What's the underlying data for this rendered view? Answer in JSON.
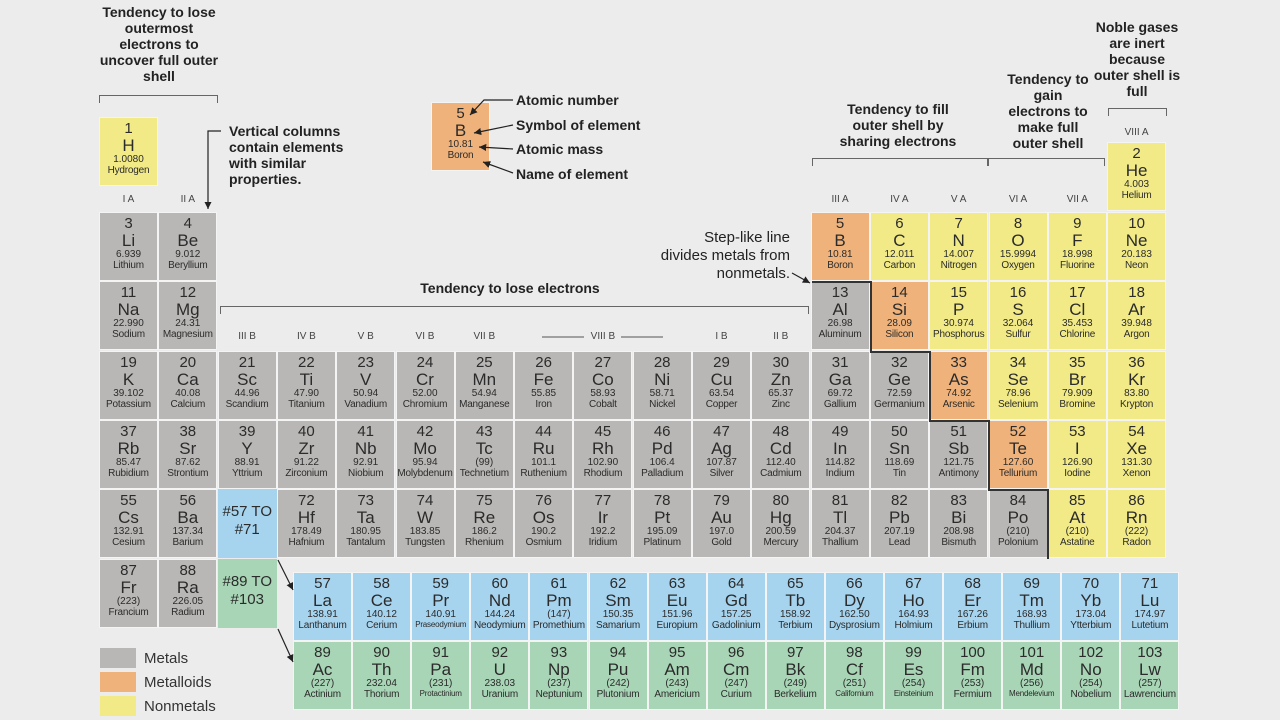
{
  "groups": [
    {
      "label": "I A",
      "col": 1,
      "row": 1
    },
    {
      "label": "II A",
      "col": 2,
      "row": 1
    },
    {
      "label": "III B",
      "col": 3,
      "row": 3
    },
    {
      "label": "IV B",
      "col": 4,
      "row": 3
    },
    {
      "label": "V B",
      "col": 5,
      "row": 3
    },
    {
      "label": "VI B",
      "col": 6,
      "row": 3
    },
    {
      "label": "VII B",
      "col": 7,
      "row": 3
    },
    {
      "label": "VIII B",
      "col": 9,
      "row": 3
    },
    {
      "label": "I B",
      "col": 11,
      "row": 3
    },
    {
      "label": "II B",
      "col": 12,
      "row": 3
    },
    {
      "label": "III A",
      "col": 13,
      "row": 1
    },
    {
      "label": "IV A",
      "col": 14,
      "row": 1
    },
    {
      "label": "V A",
      "col": 15,
      "row": 1
    },
    {
      "label": "VI A",
      "col": 16,
      "row": 1
    },
    {
      "label": "VII A",
      "col": 17,
      "row": 1
    },
    {
      "label": "VIII A",
      "col": 18,
      "row": 0
    }
  ],
  "elements": [
    {
      "n": "1",
      "s": "H",
      "m": "1.0080",
      "name": "Hydrogen",
      "col": 1,
      "row": 0,
      "t": "nonmetal"
    },
    {
      "n": "2",
      "s": "He",
      "m": "4.003",
      "name": "Helium",
      "col": 18,
      "row": 0,
      "t": "nonmetal"
    },
    {
      "n": "3",
      "s": "Li",
      "m": "6.939",
      "name": "Lithium",
      "col": 1,
      "row": 1,
      "t": "metal"
    },
    {
      "n": "4",
      "s": "Be",
      "m": "9.012",
      "name": "Beryllium",
      "col": 2,
      "row": 1,
      "t": "metal"
    },
    {
      "n": "5",
      "s": "B",
      "m": "10.81",
      "name": "Boron",
      "col": 13,
      "row": 1,
      "t": "metalloid"
    },
    {
      "n": "6",
      "s": "C",
      "m": "12.011",
      "name": "Carbon",
      "col": 14,
      "row": 1,
      "t": "nonmetal"
    },
    {
      "n": "7",
      "s": "N",
      "m": "14.007",
      "name": "Nitrogen",
      "col": 15,
      "row": 1,
      "t": "nonmetal"
    },
    {
      "n": "8",
      "s": "O",
      "m": "15.9994",
      "name": "Oxygen",
      "col": 16,
      "row": 1,
      "t": "nonmetal"
    },
    {
      "n": "9",
      "s": "F",
      "m": "18.998",
      "name": "Fluorine",
      "col": 17,
      "row": 1,
      "t": "nonmetal"
    },
    {
      "n": "10",
      "s": "Ne",
      "m": "20.183",
      "name": "Neon",
      "col": 18,
      "row": 1,
      "t": "nonmetal"
    },
    {
      "n": "11",
      "s": "Na",
      "m": "22.990",
      "name": "Sodium",
      "col": 1,
      "row": 2,
      "t": "metal"
    },
    {
      "n": "12",
      "s": "Mg",
      "m": "24.31",
      "name": "Magnesium",
      "col": 2,
      "row": 2,
      "t": "metal"
    },
    {
      "n": "13",
      "s": "Al",
      "m": "26.98",
      "name": "Aluminum",
      "col": 13,
      "row": 2,
      "t": "metal"
    },
    {
      "n": "14",
      "s": "Si",
      "m": "28.09",
      "name": "Silicon",
      "col": 14,
      "row": 2,
      "t": "metalloid"
    },
    {
      "n": "15",
      "s": "P",
      "m": "30.974",
      "name": "Phosphorus",
      "col": 15,
      "row": 2,
      "t": "nonmetal"
    },
    {
      "n": "16",
      "s": "S",
      "m": "32.064",
      "name": "Sulfur",
      "col": 16,
      "row": 2,
      "t": "nonmetal"
    },
    {
      "n": "17",
      "s": "Cl",
      "m": "35.453",
      "name": "Chlorine",
      "col": 17,
      "row": 2,
      "t": "nonmetal"
    },
    {
      "n": "18",
      "s": "Ar",
      "m": "39.948",
      "name": "Argon",
      "col": 18,
      "row": 2,
      "t": "nonmetal"
    },
    {
      "n": "19",
      "s": "K",
      "m": "39.102",
      "name": "Potassium",
      "col": 1,
      "row": 3,
      "t": "metal"
    },
    {
      "n": "20",
      "s": "Ca",
      "m": "40.08",
      "name": "Calcium",
      "col": 2,
      "row": 3,
      "t": "metal"
    },
    {
      "n": "21",
      "s": "Sc",
      "m": "44.96",
      "name": "Scandium",
      "col": 3,
      "row": 3,
      "t": "metal"
    },
    {
      "n": "22",
      "s": "Ti",
      "m": "47.90",
      "name": "Titanium",
      "col": 4,
      "row": 3,
      "t": "metal"
    },
    {
      "n": "23",
      "s": "V",
      "m": "50.94",
      "name": "Vanadium",
      "col": 5,
      "row": 3,
      "t": "metal"
    },
    {
      "n": "24",
      "s": "Cr",
      "m": "52.00",
      "name": "Chromium",
      "col": 6,
      "row": 3,
      "t": "metal"
    },
    {
      "n": "25",
      "s": "Mn",
      "m": "54.94",
      "name": "Manganese",
      "col": 7,
      "row": 3,
      "t": "metal"
    },
    {
      "n": "26",
      "s": "Fe",
      "m": "55.85",
      "name": "Iron",
      "col": 8,
      "row": 3,
      "t": "metal"
    },
    {
      "n": "27",
      "s": "Co",
      "m": "58.93",
      "name": "Cobalt",
      "col": 9,
      "row": 3,
      "t": "metal"
    },
    {
      "n": "28",
      "s": "Ni",
      "m": "58.71",
      "name": "Nickel",
      "col": 10,
      "row": 3,
      "t": "metal"
    },
    {
      "n": "29",
      "s": "Cu",
      "m": "63.54",
      "name": "Copper",
      "col": 11,
      "row": 3,
      "t": "metal"
    },
    {
      "n": "30",
      "s": "Zn",
      "m": "65.37",
      "name": "Zinc",
      "col": 12,
      "row": 3,
      "t": "metal"
    },
    {
      "n": "31",
      "s": "Ga",
      "m": "69.72",
      "name": "Gallium",
      "col": 13,
      "row": 3,
      "t": "metal"
    },
    {
      "n": "32",
      "s": "Ge",
      "m": "72.59",
      "name": "Germanium",
      "col": 14,
      "row": 3,
      "t": "metal"
    },
    {
      "n": "33",
      "s": "As",
      "m": "74.92",
      "name": "Arsenic",
      "col": 15,
      "row": 3,
      "t": "metalloid"
    },
    {
      "n": "34",
      "s": "Se",
      "m": "78.96",
      "name": "Selenium",
      "col": 16,
      "row": 3,
      "t": "nonmetal"
    },
    {
      "n": "35",
      "s": "Br",
      "m": "79.909",
      "name": "Bromine",
      "col": 17,
      "row": 3,
      "t": "nonmetal"
    },
    {
      "n": "36",
      "s": "Kr",
      "m": "83.80",
      "name": "Krypton",
      "col": 18,
      "row": 3,
      "t": "nonmetal"
    },
    {
      "n": "37",
      "s": "Rb",
      "m": "85.47",
      "name": "Rubidium",
      "col": 1,
      "row": 4,
      "t": "metal"
    },
    {
      "n": "38",
      "s": "Sr",
      "m": "87.62",
      "name": "Strontium",
      "col": 2,
      "row": 4,
      "t": "metal"
    },
    {
      "n": "39",
      "s": "Y",
      "m": "88.91",
      "name": "Yttrium",
      "col": 3,
      "row": 4,
      "t": "metal"
    },
    {
      "n": "40",
      "s": "Zr",
      "m": "91.22",
      "name": "Zirconium",
      "col": 4,
      "row": 4,
      "t": "metal"
    },
    {
      "n": "41",
      "s": "Nb",
      "m": "92.91",
      "name": "Niobium",
      "col": 5,
      "row": 4,
      "t": "metal"
    },
    {
      "n": "42",
      "s": "Mo",
      "m": "95.94",
      "name": "Molybdenum",
      "col": 6,
      "row": 4,
      "t": "metal"
    },
    {
      "n": "43",
      "s": "Tc",
      "m": "(99)",
      "name": "Technetium",
      "col": 7,
      "row": 4,
      "t": "metal"
    },
    {
      "n": "44",
      "s": "Ru",
      "m": "101.1",
      "name": "Ruthenium",
      "col": 8,
      "row": 4,
      "t": "metal"
    },
    {
      "n": "45",
      "s": "Rh",
      "m": "102.90",
      "name": "Rhodium",
      "col": 9,
      "row": 4,
      "t": "metal"
    },
    {
      "n": "46",
      "s": "Pd",
      "m": "106.4",
      "name": "Palladium",
      "col": 10,
      "row": 4,
      "t": "metal"
    },
    {
      "n": "47",
      "s": "Ag",
      "m": "107.87",
      "name": "Silver",
      "col": 11,
      "row": 4,
      "t": "metal"
    },
    {
      "n": "48",
      "s": "Cd",
      "m": "112.40",
      "name": "Cadmium",
      "col": 12,
      "row": 4,
      "t": "metal"
    },
    {
      "n": "49",
      "s": "In",
      "m": "114.82",
      "name": "Indium",
      "col": 13,
      "row": 4,
      "t": "metal"
    },
    {
      "n": "50",
      "s": "Sn",
      "m": "118.69",
      "name": "Tin",
      "col": 14,
      "row": 4,
      "t": "metal"
    },
    {
      "n": "51",
      "s": "Sb",
      "m": "121.75",
      "name": "Antimony",
      "col": 15,
      "row": 4,
      "t": "metal"
    },
    {
      "n": "52",
      "s": "Te",
      "m": "127.60",
      "name": "Tellurium",
      "col": 16,
      "row": 4,
      "t": "metalloid"
    },
    {
      "n": "53",
      "s": "I",
      "m": "126.90",
      "name": "Iodine",
      "col": 17,
      "row": 4,
      "t": "nonmetal"
    },
    {
      "n": "54",
      "s": "Xe",
      "m": "131.30",
      "name": "Xenon",
      "col": 18,
      "row": 4,
      "t": "nonmetal"
    },
    {
      "n": "55",
      "s": "Cs",
      "m": "132.91",
      "name": "Cesium",
      "col": 1,
      "row": 5,
      "t": "metal"
    },
    {
      "n": "56",
      "s": "Ba",
      "m": "137.34",
      "name": "Barium",
      "col": 2,
      "row": 5,
      "t": "metal"
    },
    {
      "n": "72",
      "s": "Hf",
      "m": "178.49",
      "name": "Hafnium",
      "col": 4,
      "row": 5,
      "t": "metal"
    },
    {
      "n": "73",
      "s": "Ta",
      "m": "180.95",
      "name": "Tantalum",
      "col": 5,
      "row": 5,
      "t": "metal"
    },
    {
      "n": "74",
      "s": "W",
      "m": "183.85",
      "name": "Tungsten",
      "col": 6,
      "row": 5,
      "t": "metal"
    },
    {
      "n": "75",
      "s": "Re",
      "m": "186.2",
      "name": "Rhenium",
      "col": 7,
      "row": 5,
      "t": "metal"
    },
    {
      "n": "76",
      "s": "Os",
      "m": "190.2",
      "name": "Osmium",
      "col": 8,
      "row": 5,
      "t": "metal"
    },
    {
      "n": "77",
      "s": "Ir",
      "m": "192.2",
      "name": "Iridium",
      "col": 9,
      "row": 5,
      "t": "metal"
    },
    {
      "n": "78",
      "s": "Pt",
      "m": "195.09",
      "name": "Platinum",
      "col": 10,
      "row": 5,
      "t": "metal"
    },
    {
      "n": "79",
      "s": "Au",
      "m": "197.0",
      "name": "Gold",
      "col": 11,
      "row": 5,
      "t": "metal"
    },
    {
      "n": "80",
      "s": "Hg",
      "m": "200.59",
      "name": "Mercury",
      "col": 12,
      "row": 5,
      "t": "metal"
    },
    {
      "n": "81",
      "s": "Tl",
      "m": "204.37",
      "name": "Thallium",
      "col": 13,
      "row": 5,
      "t": "metal"
    },
    {
      "n": "82",
      "s": "Pb",
      "m": "207.19",
      "name": "Lead",
      "col": 14,
      "row": 5,
      "t": "metal"
    },
    {
      "n": "83",
      "s": "Bi",
      "m": "208.98",
      "name": "Bismuth",
      "col": 15,
      "row": 5,
      "t": "metal"
    },
    {
      "n": "84",
      "s": "Po",
      "m": "(210)",
      "name": "Polonium",
      "col": 16,
      "row": 5,
      "t": "metal"
    },
    {
      "n": "85",
      "s": "At",
      "m": "(210)",
      "name": "Astatine",
      "col": 17,
      "row": 5,
      "t": "nonmetal"
    },
    {
      "n": "86",
      "s": "Rn",
      "m": "(222)",
      "name": "Radon",
      "col": 18,
      "row": 5,
      "t": "nonmetal"
    },
    {
      "n": "87",
      "s": "Fr",
      "m": "(223)",
      "name": "Francium",
      "col": 1,
      "row": 6,
      "t": "metal"
    },
    {
      "n": "88",
      "s": "Ra",
      "m": "226.05",
      "name": "Radium",
      "col": 2,
      "row": 6,
      "t": "metal"
    }
  ],
  "lanthanides": [
    {
      "n": "57",
      "s": "La",
      "m": "138.91",
      "name": "Lanthanum"
    },
    {
      "n": "58",
      "s": "Ce",
      "m": "140.12",
      "name": "Cerium"
    },
    {
      "n": "59",
      "s": "Pr",
      "m": "140.91",
      "name": "Praseodymium"
    },
    {
      "n": "60",
      "s": "Nd",
      "m": "144.24",
      "name": "Neodymium"
    },
    {
      "n": "61",
      "s": "Pm",
      "m": "(147)",
      "name": "Promethium"
    },
    {
      "n": "62",
      "s": "Sm",
      "m": "150.35",
      "name": "Samarium"
    },
    {
      "n": "63",
      "s": "Eu",
      "m": "151.96",
      "name": "Europium"
    },
    {
      "n": "64",
      "s": "Gd",
      "m": "157.25",
      "name": "Gadolinium"
    },
    {
      "n": "65",
      "s": "Tb",
      "m": "158.92",
      "name": "Terbium"
    },
    {
      "n": "66",
      "s": "Dy",
      "m": "162.50",
      "name": "Dysprosium"
    },
    {
      "n": "67",
      "s": "Ho",
      "m": "164.93",
      "name": "Holmium"
    },
    {
      "n": "68",
      "s": "Er",
      "m": "167.26",
      "name": "Erbium"
    },
    {
      "n": "69",
      "s": "Tm",
      "m": "168.93",
      "name": "Thullium"
    },
    {
      "n": "70",
      "s": "Yb",
      "m": "173.04",
      "name": "Ytterbium"
    },
    {
      "n": "71",
      "s": "Lu",
      "m": "174.97",
      "name": "Lutetium"
    }
  ],
  "actinides": [
    {
      "n": "89",
      "s": "Ac",
      "m": "(227)",
      "name": "Actinium"
    },
    {
      "n": "90",
      "s": "Th",
      "m": "232.04",
      "name": "Thorium"
    },
    {
      "n": "91",
      "s": "Pa",
      "m": "(231)",
      "name": "Protactinium"
    },
    {
      "n": "92",
      "s": "U",
      "m": "238.03",
      "name": "Uranium"
    },
    {
      "n": "93",
      "s": "Np",
      "m": "(237)",
      "name": "Neptunium"
    },
    {
      "n": "94",
      "s": "Pu",
      "m": "(242)",
      "name": "Plutonium"
    },
    {
      "n": "95",
      "s": "Am",
      "m": "(243)",
      "name": "Americium"
    },
    {
      "n": "96",
      "s": "Cm",
      "m": "(247)",
      "name": "Curium"
    },
    {
      "n": "97",
      "s": "Bk",
      "m": "(249)",
      "name": "Berkelium"
    },
    {
      "n": "98",
      "s": "Cf",
      "m": "(251)",
      "name": "Californium"
    },
    {
      "n": "99",
      "s": "Es",
      "m": "(254)",
      "name": "Einsteinium"
    },
    {
      "n": "100",
      "s": "Fm",
      "m": "(253)",
      "name": "Fermium"
    },
    {
      "n": "101",
      "s": "Md",
      "m": "(256)",
      "name": "Mendelevium"
    },
    {
      "n": "102",
      "s": "No",
      "m": "(254)",
      "name": "Nobelium"
    },
    {
      "n": "103",
      "s": "Lw",
      "m": "(257)",
      "name": "Lawrencium"
    }
  ],
  "refs": {
    "lan": "#57 TO #71",
    "act": "#89 TO #103"
  },
  "annotations": {
    "lose_outermost": "Tendency to lose outermost electrons to uncover full outer shell",
    "vertical_columns": "Vertical columns contain elements with similar properties.",
    "lose_electrons": "Tendency to lose electrons",
    "fill_outer": "Tendency to fill outer shell by sharing electrons",
    "gain_electrons": "Tendency to gain electrons to make full outer shell",
    "noble": "Noble gases are inert because outer shell is full",
    "stepline": "Step-like line divides metals from nonmetals."
  },
  "sample": {
    "number": "5",
    "symbol": "B",
    "mass": "10.81",
    "name": "Boron",
    "labels": [
      "Atomic number",
      "Symbol of element",
      "Atomic mass",
      "Name of element"
    ]
  },
  "legend": [
    {
      "label": "Metals",
      "color": "#b9b7b5"
    },
    {
      "label": "Metalloids",
      "color": "#efb27a"
    },
    {
      "label": "Nonmetals",
      "color": "#f2ea86"
    }
  ]
}
